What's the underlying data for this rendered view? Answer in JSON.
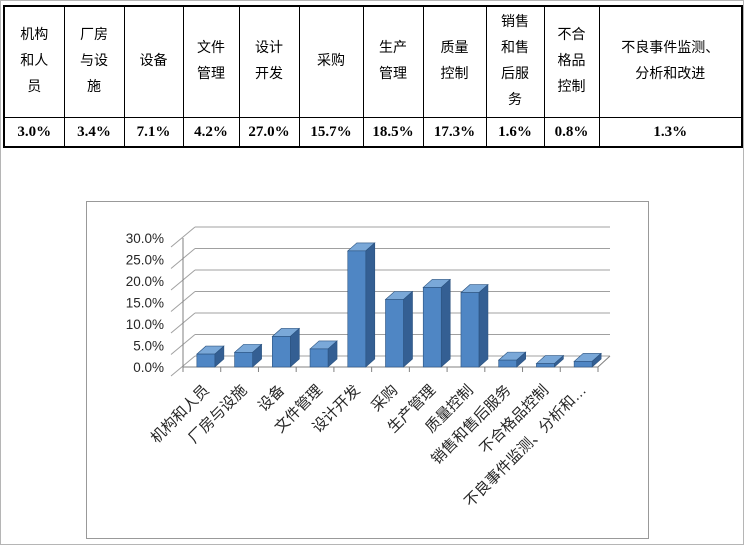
{
  "table": {
    "columns": [
      {
        "header": "机构\n和人\n员",
        "value": "3.0%"
      },
      {
        "header": "厂房\n与设\n施",
        "value": "3.4%"
      },
      {
        "header": "设备",
        "value": "7.1%"
      },
      {
        "header": "文件\n管理",
        "value": "4.2%"
      },
      {
        "header": "设计\n开发",
        "value": "27.0%"
      },
      {
        "header": "采购",
        "value": "15.7%"
      },
      {
        "header": "生产\n管理",
        "value": "18.5%"
      },
      {
        "header": "质量\n控制",
        "value": "17.3%"
      },
      {
        "header": "销售\n和售\n后服\n务",
        "value": "1.6%"
      },
      {
        "header": "不合\n格品\n控制",
        "value": "0.8%"
      },
      {
        "header": "不良事件监测、\n分析和改进",
        "value": "1.3%"
      }
    ]
  },
  "chart_data": {
    "type": "bar",
    "variant": "3d-column",
    "title": "",
    "xlabel": "",
    "ylabel": "",
    "categories": [
      "机构和人员",
      "厂房与设施",
      "设备",
      "文件管理",
      "设计开发",
      "采购",
      "生产管理",
      "质量控制",
      "销售和售后服务",
      "不合格品控制",
      "不良事件监测、分析和…"
    ],
    "values": [
      3.0,
      3.4,
      7.1,
      4.2,
      27.0,
      15.7,
      18.5,
      17.3,
      1.6,
      0.8,
      1.3
    ],
    "ylim": [
      0,
      30
    ],
    "ytick_step": 5,
    "ytick_labels": [
      "0.0%",
      "5.0%",
      "10.0%",
      "15.0%",
      "20.0%",
      "25.0%",
      "30.0%"
    ],
    "grid": true,
    "legend": false,
    "colors": {
      "bar_front": "#4f86c4",
      "bar_top": "#7aa8d8",
      "bar_side": "#345f93",
      "bar_stroke": "#2b5380",
      "gridline": "#a0a0a0",
      "axis": "#808080",
      "label_text": "#262626"
    }
  }
}
